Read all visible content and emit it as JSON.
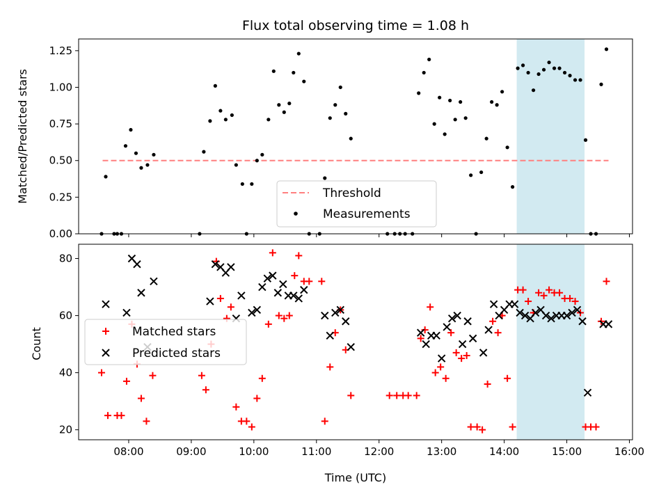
{
  "chart_data": [
    {
      "type": "scatter",
      "title": "Flux total observing time = 1.08 h",
      "ylabel": "Matched/Predicted stars",
      "xlabel": "",
      "xlim": [
        "07:12",
        "16:03"
      ],
      "ylim": [
        0,
        1.33
      ],
      "yticks": [
        "0.00",
        "0.25",
        "0.50",
        "0.75",
        "1.00",
        "1.25"
      ],
      "show_x_tick_labels": false,
      "legend_position": "lower center",
      "highlight_span": {
        "start": "14:12",
        "end": "15:17",
        "color": "#add8e6"
      },
      "threshold": {
        "name": "Threshold",
        "y": 0.5,
        "x_start": "07:35",
        "x_end": "15:40",
        "color": "#ff7f7f"
      },
      "series": [
        {
          "name": "Measurements",
          "marker": "dot",
          "color": "#000000",
          "points": [
            [
              "07:34",
              0.0
            ],
            [
              "07:38",
              0.39
            ],
            [
              "07:46",
              0.0
            ],
            [
              "07:49",
              0.0
            ],
            [
              "07:53",
              0.0
            ],
            [
              "07:57",
              0.6
            ],
            [
              "08:02",
              0.71
            ],
            [
              "08:07",
              0.55
            ],
            [
              "08:12",
              0.45
            ],
            [
              "08:18",
              0.47
            ],
            [
              "08:24",
              0.54
            ],
            [
              "09:08",
              0.0
            ],
            [
              "09:12",
              0.56
            ],
            [
              "09:18",
              0.77
            ],
            [
              "09:23",
              1.01
            ],
            [
              "09:28",
              0.84
            ],
            [
              "09:33",
              0.78
            ],
            [
              "09:39",
              0.81
            ],
            [
              "09:43",
              0.47
            ],
            [
              "09:49",
              0.34
            ],
            [
              "09:53",
              0.0
            ],
            [
              "09:58",
              0.34
            ],
            [
              "10:03",
              0.5
            ],
            [
              "10:08",
              0.54
            ],
            [
              "10:14",
              0.78
            ],
            [
              "10:19",
              1.11
            ],
            [
              "10:24",
              0.88
            ],
            [
              "10:29",
              0.83
            ],
            [
              "10:34",
              0.89
            ],
            [
              "10:38",
              1.1
            ],
            [
              "10:43",
              1.23
            ],
            [
              "10:48",
              1.04
            ],
            [
              "10:53",
              0.0
            ],
            [
              "11:03",
              0.0
            ],
            [
              "11:08",
              0.38
            ],
            [
              "11:13",
              0.79
            ],
            [
              "11:18",
              0.88
            ],
            [
              "11:23",
              1.0
            ],
            [
              "11:28",
              0.82
            ],
            [
              "11:33",
              0.65
            ],
            [
              "12:08",
              0.0
            ],
            [
              "12:15",
              0.0
            ],
            [
              "12:20",
              0.0
            ],
            [
              "12:25",
              0.0
            ],
            [
              "12:32",
              0.0
            ],
            [
              "12:38",
              0.96
            ],
            [
              "12:43",
              1.1
            ],
            [
              "12:48",
              1.19
            ],
            [
              "12:53",
              0.75
            ],
            [
              "12:58",
              0.93
            ],
            [
              "13:03",
              0.68
            ],
            [
              "13:08",
              0.91
            ],
            [
              "13:13",
              0.78
            ],
            [
              "13:18",
              0.9
            ],
            [
              "13:23",
              0.79
            ],
            [
              "13:28",
              0.4
            ],
            [
              "13:33",
              0.0
            ],
            [
              "13:38",
              0.42
            ],
            [
              "13:43",
              0.65
            ],
            [
              "13:48",
              0.9
            ],
            [
              "13:53",
              0.88
            ],
            [
              "13:58",
              0.97
            ],
            [
              "14:03",
              0.59
            ],
            [
              "14:08",
              0.32
            ],
            [
              "14:13",
              1.13
            ],
            [
              "14:18",
              1.15
            ],
            [
              "14:23",
              1.1
            ],
            [
              "14:28",
              0.98
            ],
            [
              "14:33",
              1.09
            ],
            [
              "14:38",
              1.12
            ],
            [
              "14:43",
              1.17
            ],
            [
              "14:48",
              1.13
            ],
            [
              "14:53",
              1.13
            ],
            [
              "14:58",
              1.1
            ],
            [
              "15:03",
              1.08
            ],
            [
              "15:08",
              1.05
            ],
            [
              "15:13",
              1.05
            ],
            [
              "15:18",
              0.64
            ],
            [
              "15:23",
              0.0
            ],
            [
              "15:28",
              0.0
            ],
            [
              "15:33",
              1.02
            ],
            [
              "15:38",
              1.26
            ]
          ]
        }
      ]
    },
    {
      "type": "scatter",
      "title": "",
      "ylabel": "Count",
      "xlabel": "Time (UTC)",
      "xlim": [
        "07:12",
        "16:03"
      ],
      "ylim": [
        16.5,
        85
      ],
      "yticks": [
        "20",
        "40",
        "60",
        "80"
      ],
      "xticks": [
        "08:00",
        "09:00",
        "10:00",
        "11:00",
        "12:00",
        "13:00",
        "14:00",
        "15:00",
        "16:00"
      ],
      "legend_position": "center left",
      "highlight_span": {
        "start": "14:12",
        "end": "15:17",
        "color": "#add8e6"
      },
      "series": [
        {
          "name": "Matched stars",
          "marker": "plus",
          "color": "#ff0000",
          "points": [
            [
              "07:34",
              40
            ],
            [
              "07:40",
              25
            ],
            [
              "07:49",
              25
            ],
            [
              "07:53",
              25
            ],
            [
              "07:58",
              37
            ],
            [
              "08:03",
              57
            ],
            [
              "08:08",
              43
            ],
            [
              "08:12",
              31
            ],
            [
              "08:17",
              23
            ],
            [
              "08:23",
              39
            ],
            [
              "09:10",
              39
            ],
            [
              "09:14",
              34
            ],
            [
              "09:19",
              50
            ],
            [
              "09:24",
              79
            ],
            [
              "09:28",
              66
            ],
            [
              "09:34",
              59
            ],
            [
              "09:38",
              63
            ],
            [
              "09:43",
              28
            ],
            [
              "09:48",
              23
            ],
            [
              "09:53",
              23
            ],
            [
              "09:58",
              21
            ],
            [
              "10:03",
              31
            ],
            [
              "10:08",
              38
            ],
            [
              "10:14",
              57
            ],
            [
              "10:18",
              82
            ],
            [
              "10:24",
              60
            ],
            [
              "10:29",
              59
            ],
            [
              "10:34",
              60
            ],
            [
              "10:39",
              74
            ],
            [
              "10:43",
              81
            ],
            [
              "10:48",
              72
            ],
            [
              "10:53",
              72
            ],
            [
              "11:05",
              72
            ],
            [
              "11:08",
              23
            ],
            [
              "11:13",
              42
            ],
            [
              "11:18",
              54
            ],
            [
              "11:23",
              62
            ],
            [
              "11:28",
              48
            ],
            [
              "11:33",
              32
            ],
            [
              "12:10",
              32
            ],
            [
              "12:17",
              32
            ],
            [
              "12:23",
              32
            ],
            [
              "12:28",
              32
            ],
            [
              "12:36",
              32
            ],
            [
              "12:40",
              52
            ],
            [
              "12:44",
              55
            ],
            [
              "12:49",
              63
            ],
            [
              "12:54",
              40
            ],
            [
              "12:59",
              42
            ],
            [
              "13:04",
              38
            ],
            [
              "13:09",
              54
            ],
            [
              "13:14",
              47
            ],
            [
              "13:19",
              45
            ],
            [
              "13:24",
              46
            ],
            [
              "13:28",
              21
            ],
            [
              "13:34",
              21
            ],
            [
              "13:39",
              20
            ],
            [
              "13:44",
              36
            ],
            [
              "13:49",
              58
            ],
            [
              "13:54",
              54
            ],
            [
              "13:58",
              60
            ],
            [
              "14:03",
              38
            ],
            [
              "14:08",
              21
            ],
            [
              "14:13",
              69
            ],
            [
              "14:18",
              69
            ],
            [
              "14:23",
              65
            ],
            [
              "14:28",
              61
            ],
            [
              "14:33",
              68
            ],
            [
              "14:38",
              67
            ],
            [
              "14:43",
              69
            ],
            [
              "14:48",
              68
            ],
            [
              "14:53",
              68
            ],
            [
              "14:58",
              66
            ],
            [
              "15:03",
              66
            ],
            [
              "15:08",
              65
            ],
            [
              "15:13",
              61
            ],
            [
              "15:18",
              21
            ],
            [
              "15:23",
              21
            ],
            [
              "15:28",
              21
            ],
            [
              "15:33",
              58
            ],
            [
              "15:38",
              72
            ]
          ]
        },
        {
          "name": "Predicted stars",
          "marker": "x",
          "color": "#000000",
          "points": [
            [
              "07:38",
              64
            ],
            [
              "07:58",
              61
            ],
            [
              "08:03",
              80
            ],
            [
              "08:08",
              78
            ],
            [
              "08:12",
              68
            ],
            [
              "08:18",
              49
            ],
            [
              "08:24",
              72
            ],
            [
              "09:18",
              65
            ],
            [
              "09:23",
              78
            ],
            [
              "09:28",
              77
            ],
            [
              "09:33",
              75
            ],
            [
              "09:38",
              77
            ],
            [
              "09:43",
              59
            ],
            [
              "09:48",
              67
            ],
            [
              "09:58",
              61
            ],
            [
              "10:03",
              62
            ],
            [
              "10:08",
              70
            ],
            [
              "10:13",
              73
            ],
            [
              "10:18",
              74
            ],
            [
              "10:23",
              68
            ],
            [
              "10:28",
              71
            ],
            [
              "10:33",
              67
            ],
            [
              "10:38",
              67
            ],
            [
              "10:43",
              66
            ],
            [
              "10:48",
              69
            ],
            [
              "11:08",
              60
            ],
            [
              "11:13",
              53
            ],
            [
              "11:18",
              61
            ],
            [
              "11:23",
              62
            ],
            [
              "11:28",
              58
            ],
            [
              "11:33",
              49
            ],
            [
              "12:40",
              54
            ],
            [
              "12:45",
              50
            ],
            [
              "12:50",
              53
            ],
            [
              "12:55",
              53
            ],
            [
              "13:00",
              45
            ],
            [
              "13:05",
              56
            ],
            [
              "13:10",
              59
            ],
            [
              "13:15",
              60
            ],
            [
              "13:20",
              50
            ],
            [
              "13:25",
              58
            ],
            [
              "13:30",
              52
            ],
            [
              "13:40",
              47
            ],
            [
              "13:45",
              55
            ],
            [
              "13:50",
              64
            ],
            [
              "13:55",
              60
            ],
            [
              "14:00",
              62
            ],
            [
              "14:05",
              64
            ],
            [
              "14:10",
              64
            ],
            [
              "14:15",
              61
            ],
            [
              "14:20",
              60
            ],
            [
              "14:25",
              59
            ],
            [
              "14:30",
              61
            ],
            [
              "14:35",
              62
            ],
            [
              "14:40",
              60
            ],
            [
              "14:45",
              59
            ],
            [
              "14:50",
              60
            ],
            [
              "14:55",
              60
            ],
            [
              "15:00",
              60
            ],
            [
              "15:05",
              61
            ],
            [
              "15:10",
              62
            ],
            [
              "15:15",
              58
            ],
            [
              "15:20",
              33
            ],
            [
              "15:35",
              57
            ],
            [
              "15:40",
              57
            ]
          ]
        }
      ]
    }
  ]
}
